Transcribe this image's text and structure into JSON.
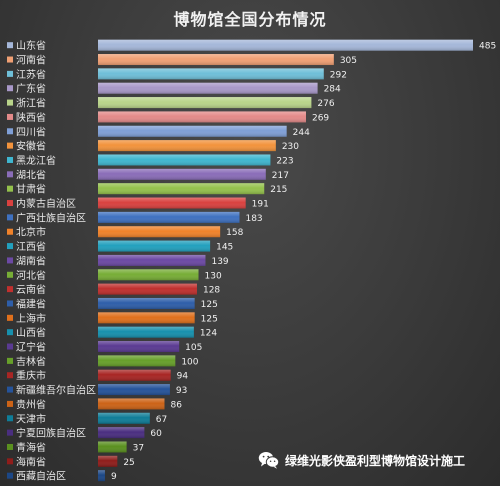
{
  "chart_data": {
    "type": "bar",
    "orientation": "horizontal",
    "title": "博物馆全国分布情况",
    "xlabel": "",
    "ylabel": "",
    "grid": false,
    "legend": "left",
    "categories": [
      "山东省",
      "河南省",
      "江苏省",
      "广东省",
      "浙江省",
      "陕西省",
      "四川省",
      "安徽省",
      "黑龙江省",
      "湖北省",
      "甘肃省",
      "内蒙古自治区",
      "广西壮族自治区",
      "北京市",
      "江西省",
      "湖南省",
      "河北省",
      "云南省",
      "福建省",
      "上海市",
      "山西省",
      "辽宁省",
      "吉林省",
      "重庆市",
      "新疆维吾尔自治区",
      "贵州省",
      "天津市",
      "宁夏回族自治区",
      "青海省",
      "海南省",
      "西藏自治区"
    ],
    "values": [
      485,
      305,
      292,
      284,
      276,
      269,
      244,
      230,
      223,
      217,
      215,
      191,
      183,
      158,
      145,
      139,
      130,
      128,
      125,
      125,
      124,
      105,
      100,
      94,
      93,
      86,
      67,
      60,
      37,
      25,
      9
    ],
    "colors": [
      "#a5b7d9",
      "#f0a074",
      "#6fbfd8",
      "#a898c8",
      "#b9d48a",
      "#e38a89",
      "#7f9fd6",
      "#f2933c",
      "#3fb6cf",
      "#8a6db8",
      "#94c14c",
      "#d9413f",
      "#3f71c0",
      "#f0822a",
      "#22a0bd",
      "#6c49a4",
      "#77ad36",
      "#c0302e",
      "#2e5ea9",
      "#e0701c",
      "#1790ad",
      "#5a3a92",
      "#67a02a",
      "#a82624",
      "#25539a",
      "#cc6317",
      "#0f7d98",
      "#4a2e80",
      "#5a901f",
      "#8f1d1b",
      "#1c4786"
    ]
  },
  "watermark": {
    "icon": "wechat-icon",
    "text": "绿维光影侠盈利型博物馆设计施工"
  }
}
